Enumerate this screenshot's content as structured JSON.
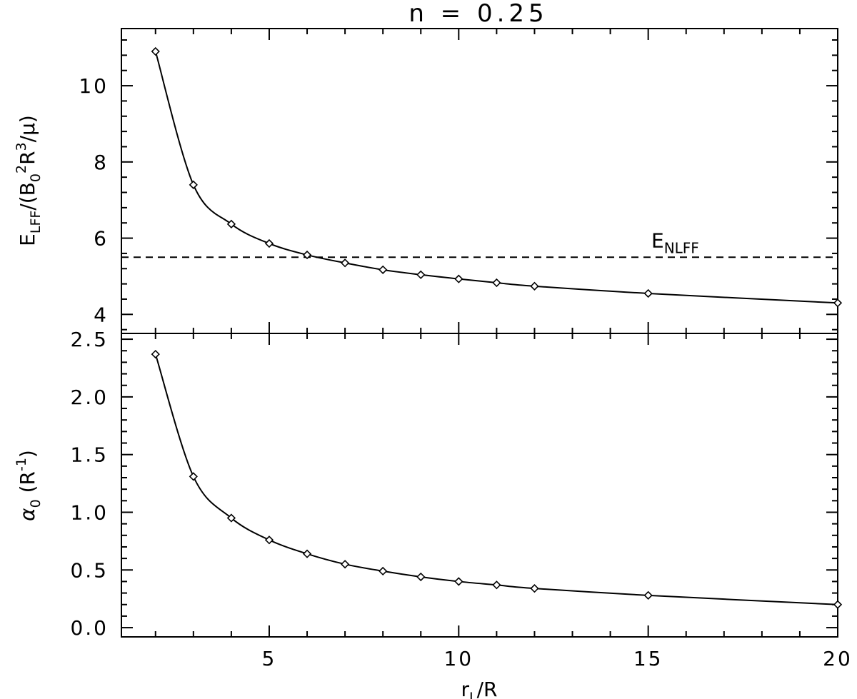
{
  "chart_data": [
    {
      "type": "line",
      "title": "n = 0.25",
      "ylabel_main": "E",
      "ylabel_sub": "LFF",
      "ylabel_rest_1": "/(B",
      "ylabel_sub2": "0",
      "ylabel_sup": "2",
      "ylabel_rest_2": "R",
      "ylabel_sup2": "3",
      "ylabel_rest_3": "/μ)",
      "xlim": [
        1.1,
        20
      ],
      "ylim": [
        3.5,
        11.5
      ],
      "yticks": [
        4,
        6,
        8,
        10
      ],
      "ytick_labels": [
        "4",
        "6",
        "8",
        "10"
      ],
      "marker": "diamond",
      "series": [
        {
          "x": [
            2,
            3,
            4,
            5,
            6,
            7,
            8,
            9,
            10,
            11,
            12,
            15,
            20
          ],
          "y": [
            10.9,
            7.4,
            6.37,
            5.86,
            5.56,
            5.35,
            5.17,
            5.04,
            4.93,
            4.83,
            4.74,
            4.55,
            4.3
          ]
        }
      ],
      "reference_line": {
        "y": 5.5,
        "style": "dashed",
        "label_main": "E",
        "label_sub": "NLFF"
      }
    },
    {
      "type": "line",
      "ylabel_main": "α",
      "ylabel_sub": "0",
      "ylabel_rest": " (R",
      "ylabel_sup": "-1",
      "ylabel_close": ")",
      "xlabel_main": "r",
      "xlabel_sub": "L",
      "xlabel_rest": "/R",
      "xlim": [
        1.1,
        20
      ],
      "ylim": [
        -0.08,
        2.55
      ],
      "yticks": [
        0.0,
        0.5,
        1.0,
        1.5,
        2.0,
        2.5
      ],
      "ytick_labels": [
        "0.0",
        "0.5",
        "1.0",
        "1.5",
        "2.0",
        "2.5"
      ],
      "xticks": [
        5,
        10,
        15,
        20
      ],
      "xtick_labels": [
        "5",
        "10",
        "15",
        "20"
      ],
      "marker": "diamond",
      "series": [
        {
          "x": [
            2,
            3,
            4,
            5,
            6,
            7,
            8,
            9,
            10,
            11,
            12,
            15,
            20
          ],
          "y": [
            2.37,
            1.31,
            0.95,
            0.76,
            0.64,
            0.55,
            0.49,
            0.44,
            0.4,
            0.37,
            0.34,
            0.28,
            0.2
          ]
        }
      ]
    }
  ]
}
